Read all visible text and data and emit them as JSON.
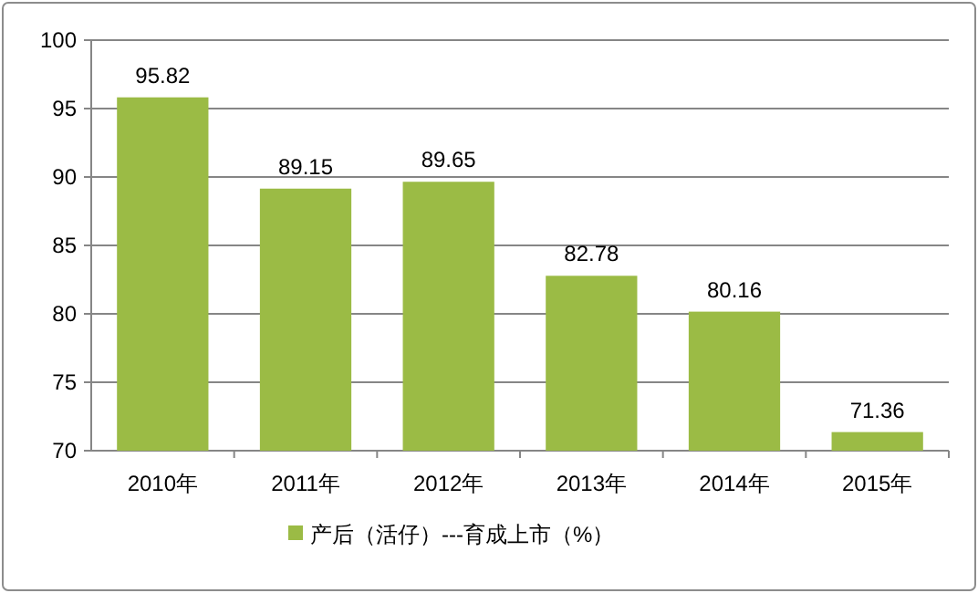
{
  "chart_data": {
    "type": "bar",
    "categories": [
      "2010年",
      "2011年",
      "2012年",
      "2013年",
      "2014年",
      "2015年"
    ],
    "series": [
      {
        "name": "产后（活仔）---育成上市（%）",
        "color": "#9bbb45",
        "values": [
          95.82,
          89.15,
          89.65,
          82.78,
          80.16,
          71.36
        ]
      }
    ],
    "ylim": [
      70,
      100
    ],
    "yticks": [
      70,
      75,
      80,
      85,
      90,
      95,
      100
    ],
    "grid": "y",
    "data_labels": true,
    "legend": "bottom"
  }
}
